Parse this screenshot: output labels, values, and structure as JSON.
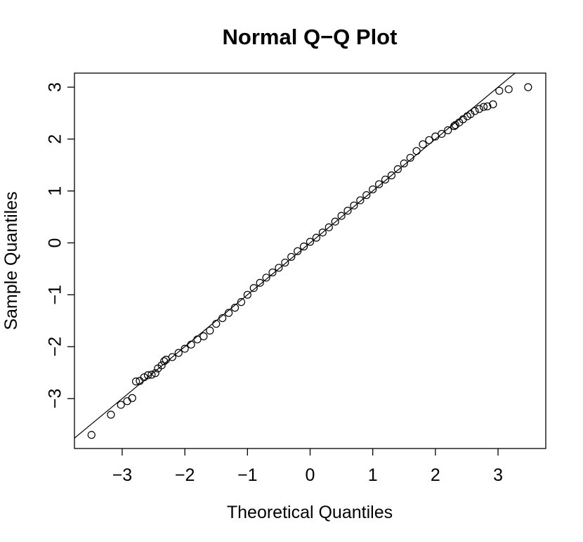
{
  "chart_data": {
    "type": "scatter",
    "title": "Normal Q−Q Plot",
    "x_label": "Theoretical Quantiles",
    "y_label": "Sample Quantiles",
    "xlim": [
      -3.762,
      3.762
    ],
    "ylim": [
      -3.962,
      3.271
    ],
    "xticks": [
      {
        "value": -3,
        "label": "−3"
      },
      {
        "value": -2,
        "label": "−2"
      },
      {
        "value": -1,
        "label": "−1"
      },
      0,
      1,
      2,
      3
    ],
    "yticks": [
      {
        "value": -3,
        "label": "−3"
      },
      {
        "value": -2,
        "label": "−2"
      },
      {
        "value": -1,
        "label": "−1"
      },
      0,
      1,
      2,
      3
    ],
    "color": "#000000",
    "reference_line": {
      "intercept": 0,
      "slope": 1
    },
    "x": [
      -3.49,
      -3.18,
      -3.02,
      -2.92,
      -2.84,
      -2.78,
      -2.72,
      -2.65,
      -2.59,
      -2.53,
      -2.47,
      -2.43,
      -2.37,
      -2.33,
      -2.3,
      -2.2,
      -2.1,
      -2.0,
      -1.9,
      -1.8,
      -1.7,
      -1.6,
      -1.5,
      -1.4,
      -1.3,
      -1.2,
      -1.1,
      -1.0,
      -0.9,
      -0.8,
      -0.7,
      -0.6,
      -0.5,
      -0.4,
      -0.3,
      -0.2,
      -0.1,
      0,
      0.1,
      0.2,
      0.3,
      0.4,
      0.5,
      0.6,
      0.7,
      0.8,
      0.9,
      1.0,
      1.1,
      1.2,
      1.3,
      1.4,
      1.5,
      1.6,
      1.7,
      1.8,
      1.9,
      2.0,
      2.1,
      2.2,
      2.3,
      2.32,
      2.38,
      2.44,
      2.51,
      2.56,
      2.63,
      2.7,
      2.77,
      2.83,
      2.92,
      3.02,
      3.17,
      3.48
    ],
    "y": [
      -3.7,
      -3.31,
      -3.12,
      -3.05,
      -2.99,
      -2.67,
      -2.66,
      -2.59,
      -2.55,
      -2.54,
      -2.51,
      -2.42,
      -2.36,
      -2.28,
      -2.25,
      -2.2,
      -2.12,
      -2.04,
      -1.96,
      -1.86,
      -1.8,
      -1.69,
      -1.56,
      -1.45,
      -1.35,
      -1.25,
      -1.14,
      -1.0,
      -0.87,
      -0.77,
      -0.67,
      -0.57,
      -0.48,
      -0.38,
      -0.27,
      -0.16,
      -0.07,
      0.02,
      0.1,
      0.2,
      0.3,
      0.41,
      0.52,
      0.62,
      0.72,
      0.82,
      0.92,
      1.03,
      1.13,
      1.22,
      1.3,
      1.42,
      1.53,
      1.64,
      1.77,
      1.9,
      1.98,
      2.05,
      2.1,
      2.17,
      2.25,
      2.27,
      2.32,
      2.38,
      2.44,
      2.48,
      2.54,
      2.58,
      2.62,
      2.63,
      2.67,
      2.93,
      2.96,
      3.0
    ]
  }
}
